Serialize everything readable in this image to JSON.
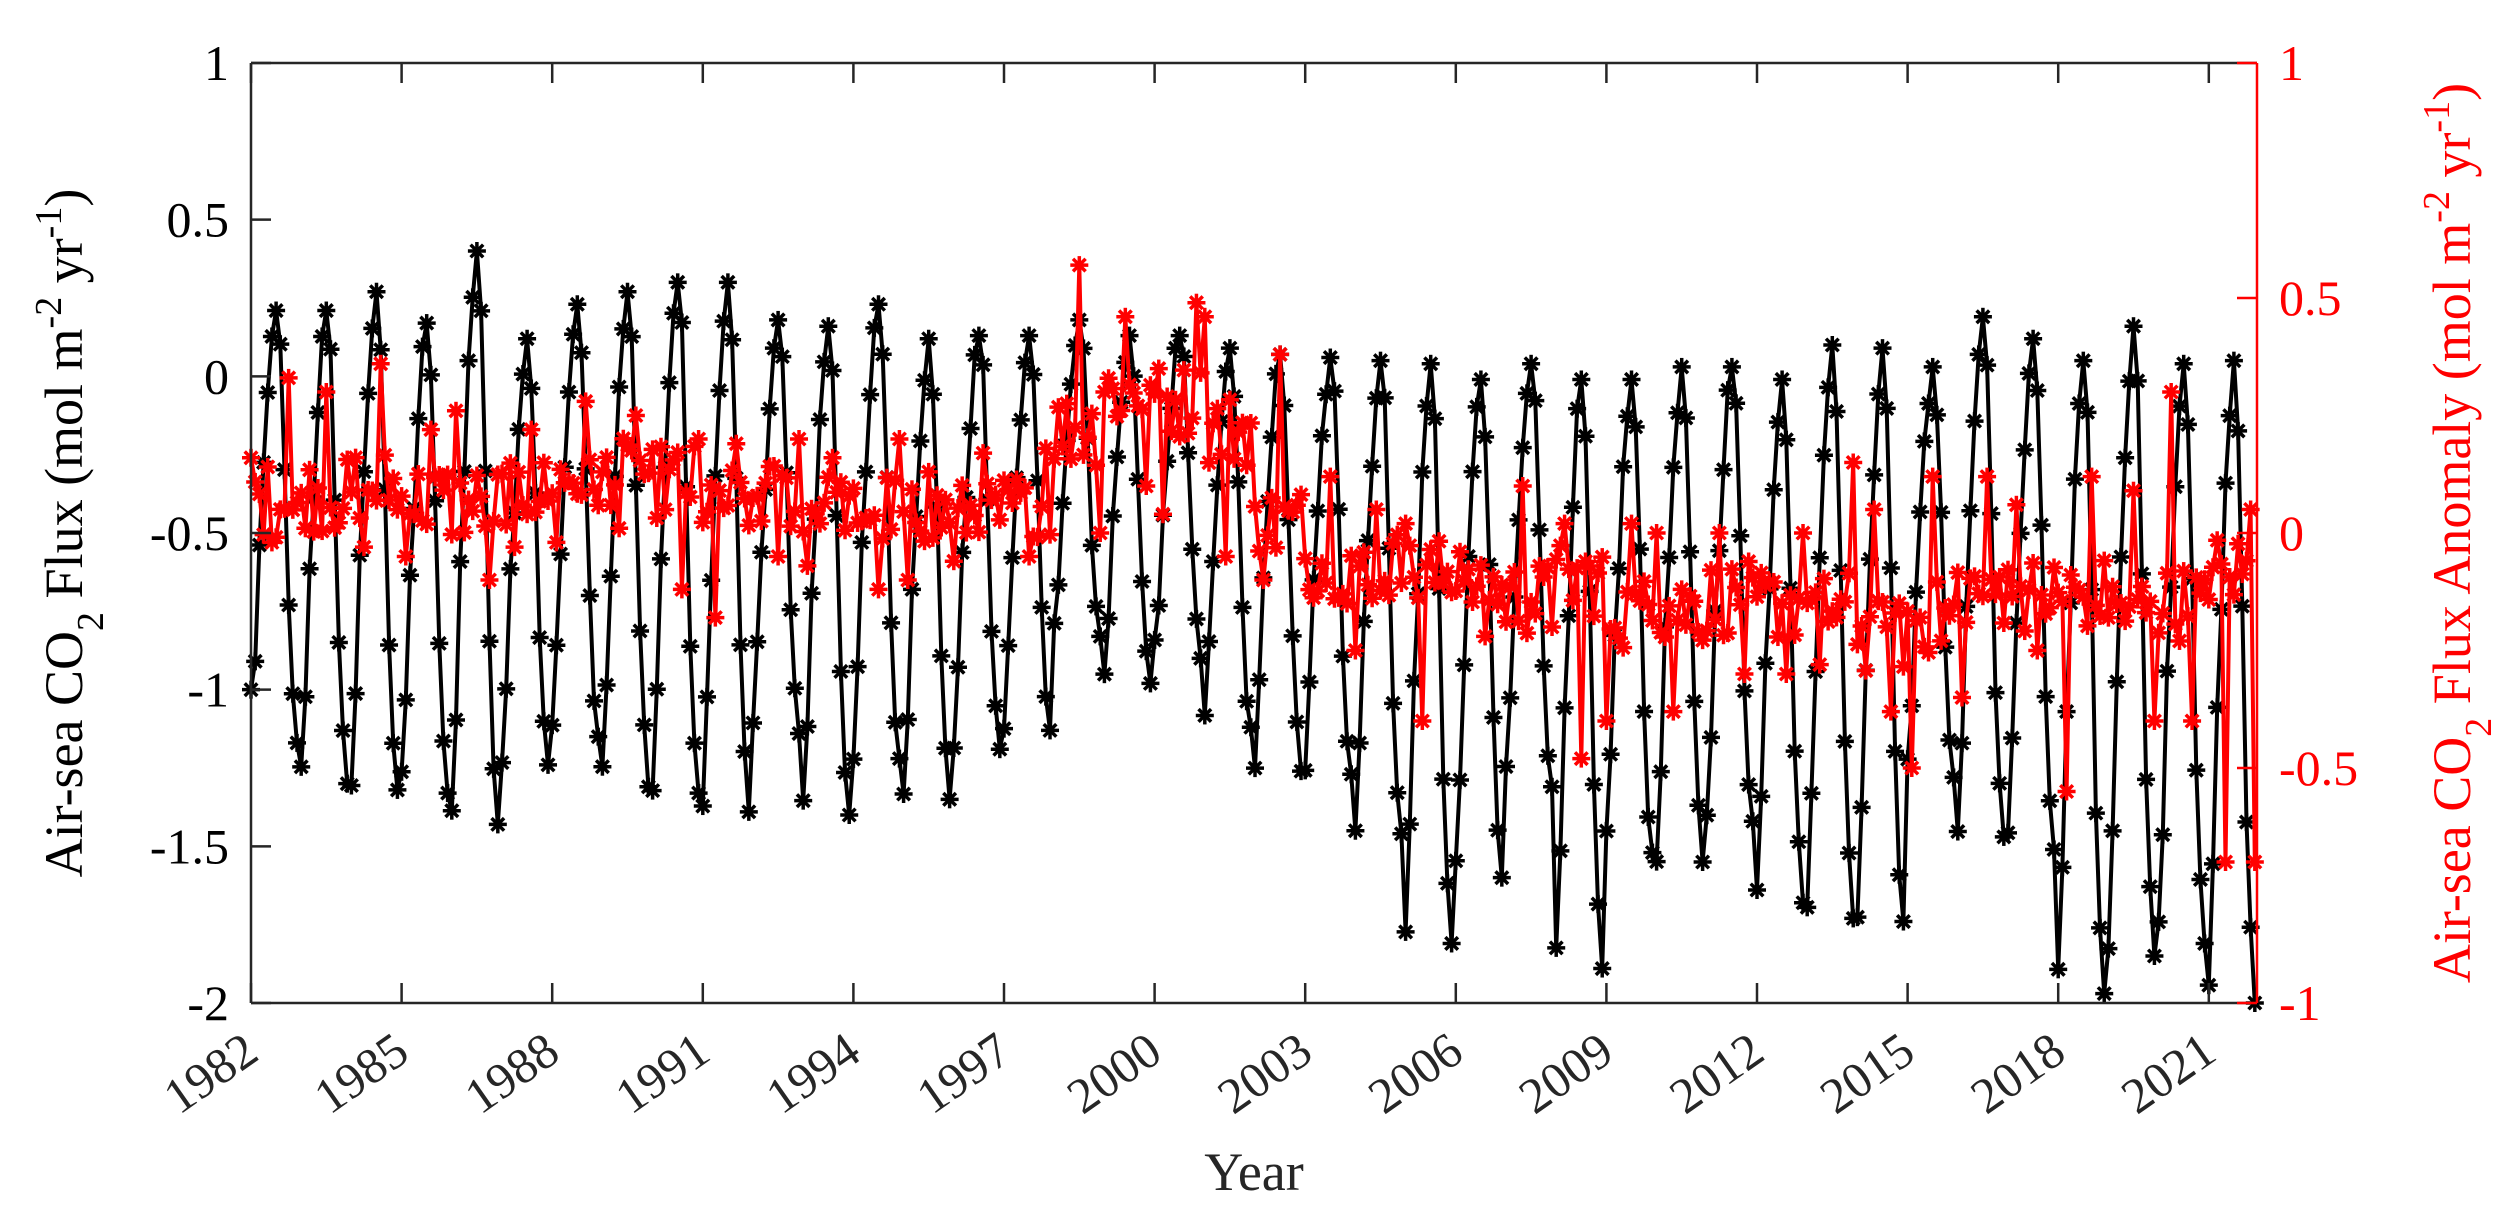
{
  "chart_data": {
    "type": "line",
    "title": "",
    "xlabel": "Year",
    "ylabel": "Air-sea CO2 Flux (mol m-2 yr-1)",
    "ylabel_right": "Air-sea CO2 Flux Anomaly (mol m-2 yr-1)",
    "xlim": [
      1982,
      2021.96
    ],
    "ylim": [
      -2,
      1
    ],
    "ylim_right": [
      -1,
      1
    ],
    "x_ticks": [
      "1982",
      "1985",
      "1988",
      "1991",
      "1994",
      "1997",
      "2000",
      "2003",
      "2006",
      "2009",
      "2012",
      "2015",
      "2018",
      "2021"
    ],
    "y_ticks": [
      "1",
      "0.5",
      "0",
      "-0.5",
      "-1",
      "-1.5",
      "-2"
    ],
    "y_ticks_right": [
      "1",
      "0.5",
      "0",
      "-0.5",
      "-1"
    ],
    "grid": false,
    "legend": null,
    "frequency": "monthly",
    "series": [
      {
        "name": "Air-sea CO2 Flux",
        "axis": "left",
        "color": "#000000",
        "marker": "asterisk",
        "years": [
          1982,
          1983,
          1984,
          1985,
          1986,
          1987,
          1988,
          1989,
          1990,
          1991,
          1992,
          1993,
          1994,
          1995,
          1996,
          1997,
          1998,
          1999,
          2000,
          2001,
          2002,
          2003,
          2004,
          2005,
          2006,
          2007,
          2008,
          2009,
          2010,
          2011,
          2012,
          2013,
          2014,
          2015,
          2016,
          2017,
          2018,
          2019,
          2020,
          2021
        ],
        "annual_max": [
          0.21,
          0.21,
          0.27,
          0.17,
          0.4,
          0.12,
          0.23,
          0.27,
          0.3,
          0.3,
          0.18,
          0.16,
          0.23,
          0.12,
          0.13,
          0.13,
          0.18,
          0.13,
          0.13,
          0.09,
          0.07,
          0.06,
          0.05,
          0.04,
          -0.01,
          0.04,
          -0.01,
          -0.01,
          0.03,
          0.03,
          -0.01,
          0.1,
          0.09,
          0.03,
          0.19,
          0.12,
          0.05,
          0.16,
          0.04,
          0.05
        ],
        "annual_min": [
          -1.17,
          -1.3,
          -1.32,
          -1.33,
          -1.43,
          -1.24,
          -1.15,
          -1.31,
          -1.33,
          -1.39,
          -1.14,
          -1.4,
          -1.22,
          -1.35,
          -1.19,
          -1.13,
          -0.83,
          -0.98,
          -0.9,
          -1.12,
          -1.26,
          -1.27,
          -1.46,
          -1.81,
          -1.6,
          -1.31,
          -1.89,
          -1.52,
          -1.55,
          -1.42,
          -1.68,
          -1.73,
          -1.74,
          -1.28,
          -1.47,
          -1.51,
          -1.97,
          -1.85,
          -1.81,
          -2.0
        ],
        "first_value": -1.0,
        "last_value": -2.0
      },
      {
        "name": "Air-sea CO2 Flux Anomaly",
        "axis": "right",
        "color": "#ff0000",
        "marker": "asterisk",
        "years": [
          1982,
          1983,
          1984,
          1985,
          1986,
          1987,
          1988,
          1989,
          1990,
          1991,
          1992,
          1993,
          1994,
          1995,
          1996,
          1997,
          1998,
          1999,
          2000,
          2001,
          2002,
          2003,
          2004,
          2005,
          2006,
          2007,
          2008,
          2009,
          2010,
          2011,
          2012,
          2013,
          2014,
          2015,
          2016,
          2017,
          2018,
          2019,
          2020,
          2021
        ],
        "annual_mean": [
          0.07,
          0.08,
          0.1,
          0.07,
          0.06,
          0.09,
          0.12,
          0.13,
          0.11,
          0.07,
          0.08,
          0.06,
          0.05,
          0.04,
          0.04,
          0.06,
          0.22,
          0.3,
          0.28,
          0.22,
          0.02,
          -0.06,
          -0.07,
          -0.09,
          -0.12,
          -0.14,
          -0.1,
          -0.17,
          -0.16,
          -0.14,
          -0.15,
          -0.16,
          -0.22,
          -0.18,
          -0.12,
          -0.13,
          -0.13,
          -0.16,
          -0.15,
          -0.08
        ],
        "annual_max": [
          0.33,
          0.3,
          0.36,
          0.22,
          0.26,
          0.22,
          0.28,
          0.25,
          0.2,
          0.19,
          0.2,
          0.16,
          0.2,
          0.13,
          0.17,
          0.18,
          0.57,
          0.46,
          0.49,
          0.46,
          0.38,
          0.12,
          0.05,
          0.02,
          -0.04,
          0.1,
          0.02,
          0.02,
          0.0,
          0.0,
          0.0,
          0.15,
          0.05,
          0.12,
          0.12,
          0.06,
          0.12,
          0.09,
          0.3,
          0.05
        ],
        "annual_min": [
          -0.02,
          0.01,
          -0.03,
          -0.05,
          -0.1,
          -0.03,
          -0.02,
          0.01,
          -0.12,
          -0.18,
          -0.05,
          -0.07,
          -0.12,
          -0.1,
          -0.06,
          -0.05,
          0.0,
          0.1,
          0.04,
          -0.05,
          -0.1,
          -0.15,
          -0.25,
          -0.4,
          -0.22,
          -0.2,
          -0.48,
          -0.4,
          -0.38,
          -0.3,
          -0.3,
          -0.28,
          -0.38,
          -0.5,
          -0.35,
          -0.25,
          -0.55,
          -0.4,
          -0.4,
          -0.7
        ],
        "first_value": 0.16,
        "last_value": -0.7
      }
    ]
  },
  "axes": {
    "xlabel": "Year",
    "ylabel_left": {
      "main": "Air-sea CO",
      "sub": "2",
      "rest": " Flux (mol m",
      "sup1": "-2",
      "mid": " yr",
      "sup2": "-1",
      "end": ")"
    },
    "ylabel_right": {
      "main": "Air-sea CO",
      "sub": "2",
      "rest": " Flux Anomaly (mol m",
      "sup1": "-2",
      "mid": " yr",
      "sup2": "-1",
      "end": ")"
    },
    "left_color": "#000000",
    "right_color": "#ff0000",
    "frame_color": "#262626"
  }
}
